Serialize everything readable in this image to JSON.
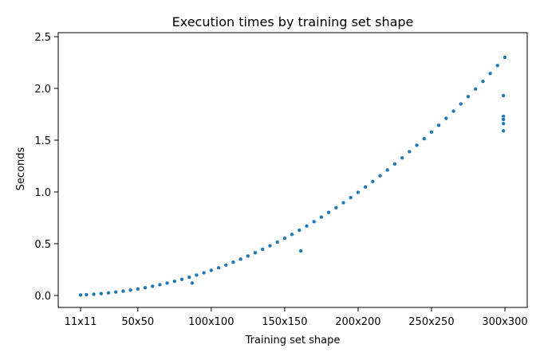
{
  "chart_data": {
    "type": "scatter",
    "title": "Execution times by training set shape",
    "xlabel": "Training set shape",
    "ylabel": "Seconds",
    "x_unit_note": "",
    "xlim": [
      0,
      300
    ],
    "ylim": [
      -0.1,
      2.5
    ],
    "x_ticks": [
      {
        "value": 11,
        "label": "11x11"
      },
      {
        "value": 50,
        "label": "50x50"
      },
      {
        "value": 100,
        "label": "100x100"
      },
      {
        "value": 150,
        "label": "150x150"
      },
      {
        "value": 200,
        "label": "200x200"
      },
      {
        "value": 250,
        "label": "250x250"
      },
      {
        "value": 300,
        "label": "300x300"
      }
    ],
    "y_ticks": [
      {
        "value": 0.0,
        "label": "0.0"
      },
      {
        "value": 0.5,
        "label": "0.5"
      },
      {
        "value": 1.0,
        "label": "1.0"
      },
      {
        "value": 1.5,
        "label": "1.5"
      },
      {
        "value": 2.0,
        "label": "2.0"
      },
      {
        "value": 2.5,
        "label": "2.5"
      }
    ],
    "grid": false,
    "marker_color": "#1f77b4",
    "series": [
      {
        "x": [
          11,
          15,
          20,
          25,
          30,
          35,
          40,
          45,
          50,
          55,
          60,
          65,
          70,
          75,
          80,
          85,
          90,
          95,
          100,
          105,
          110,
          115,
          120,
          125,
          130,
          135,
          140,
          145,
          150,
          155,
          160,
          165,
          170,
          175,
          180,
          185,
          190,
          195,
          200,
          205,
          210,
          215,
          220,
          225,
          230,
          235,
          240,
          245,
          250,
          255,
          260,
          265,
          270,
          275,
          280,
          285,
          290,
          295,
          300
        ],
        "y": [
          0.005,
          0.008,
          0.012,
          0.018,
          0.025,
          0.033,
          0.042,
          0.052,
          0.063,
          0.075,
          0.089,
          0.104,
          0.12,
          0.137,
          0.156,
          0.176,
          0.197,
          0.219,
          0.243,
          0.268,
          0.294,
          0.322,
          0.351,
          0.381,
          0.413,
          0.446,
          0.48,
          0.515,
          0.552,
          0.59,
          0.63,
          0.671,
          0.713,
          0.757,
          0.802,
          0.848,
          0.896,
          0.945,
          0.996,
          1.048,
          1.101,
          1.156,
          1.212,
          1.27,
          1.329,
          1.389,
          1.451,
          1.514,
          1.578,
          1.644,
          1.711,
          1.78,
          1.85,
          1.921,
          1.994,
          2.068,
          2.144,
          2.221,
          2.3
        ]
      }
    ],
    "outliers": {
      "x": [
        161,
        87,
        299,
        299,
        299,
        299,
        299
      ],
      "y": [
        0.43,
        0.12,
        1.93,
        1.73,
        1.7,
        1.66,
        1.59
      ]
    }
  }
}
